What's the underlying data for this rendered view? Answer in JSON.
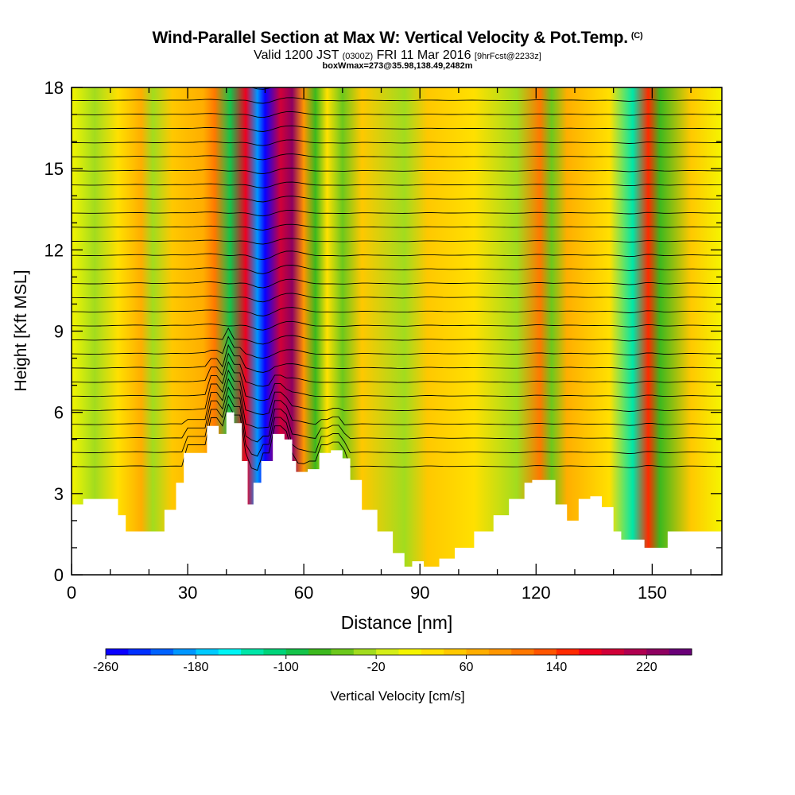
{
  "title": {
    "main": "Wind-Parallel Section at Max W: Vertical Velocity & Pot.Temp.",
    "copyright": "(C)",
    "valid_prefix": "Valid 1200 JST",
    "valid_utc": "(0300Z)",
    "valid_date": "FRI 11 Mar 2016",
    "forecast": "[9hrFcst@2233z]",
    "box_info": "boxWmax=273@35.98,138.49,2482m"
  },
  "chart_data": {
    "type": "heatmap",
    "xlabel": "Distance [nm]",
    "ylabel": "Height [Kft MSL]",
    "xlim": [
      0,
      168
    ],
    "ylim": [
      0,
      18
    ],
    "x_ticks": [
      0,
      30,
      60,
      90,
      120,
      150
    ],
    "y_ticks": [
      0,
      3,
      6,
      9,
      12,
      15,
      18
    ],
    "colorbar": {
      "label": "Vertical Velocity [cm/s]",
      "min": -260,
      "max": 260,
      "step": 20,
      "tick_labels": [
        "-260",
        "-180",
        "-100",
        "-20",
        "60",
        "140",
        "220"
      ],
      "colors": [
        "#0a00ff",
        "#0030ff",
        "#0062ff",
        "#0096ff",
        "#00caff",
        "#00f5f5",
        "#00e6a8",
        "#00d47a",
        "#14c34a",
        "#3cb81e",
        "#6cc81c",
        "#a2dc1e",
        "#d4ee18",
        "#f5f500",
        "#ffe000",
        "#ffc800",
        "#ffae00",
        "#ff9600",
        "#ff7800",
        "#ff5500",
        "#ff2a00",
        "#ee0020",
        "#d00038",
        "#b00050",
        "#8e0060",
        "#6a0078"
      ]
    },
    "velocity_columns": [
      {
        "x": 6,
        "w": -30
      },
      {
        "x": 12,
        "w": 20
      },
      {
        "x": 18,
        "w": 70
      },
      {
        "x": 21,
        "w": -40
      },
      {
        "x": 26,
        "w": 40
      },
      {
        "x": 34,
        "w": 60
      },
      {
        "x": 37,
        "w": 110
      },
      {
        "x": 41,
        "w": -100
      },
      {
        "x": 45,
        "w": 170
      },
      {
        "x": 48,
        "w": -200
      },
      {
        "x": 50,
        "w": -260
      },
      {
        "x": 54,
        "w": 180
      },
      {
        "x": 57,
        "w": 220
      },
      {
        "x": 60,
        "w": 90
      },
      {
        "x": 63,
        "w": -80
      },
      {
        "x": 66,
        "w": 30
      },
      {
        "x": 70,
        "w": -60
      },
      {
        "x": 75,
        "w": 40
      },
      {
        "x": 86,
        "w": -40
      },
      {
        "x": 92,
        "w": 50
      },
      {
        "x": 104,
        "w": 30
      },
      {
        "x": 115,
        "w": -30
      },
      {
        "x": 121,
        "w": 100
      },
      {
        "x": 124,
        "w": -50
      },
      {
        "x": 128,
        "w": 60
      },
      {
        "x": 139,
        "w": 30
      },
      {
        "x": 145,
        "w": -130
      },
      {
        "x": 149,
        "w": 150
      },
      {
        "x": 152,
        "w": -70
      },
      {
        "x": 160,
        "w": 40
      }
    ],
    "terrain_kft": [
      [
        0,
        2.6
      ],
      [
        3,
        2.8
      ],
      [
        8,
        2.8
      ],
      [
        12,
        2.2
      ],
      [
        14,
        1.6
      ],
      [
        21,
        1.6
      ],
      [
        24,
        2.4
      ],
      [
        27,
        3.4
      ],
      [
        29,
        4.5
      ],
      [
        33,
        4.5
      ],
      [
        35,
        5.5
      ],
      [
        38,
        5.2
      ],
      [
        40,
        6.0
      ],
      [
        42,
        5.6
      ],
      [
        44,
        4.2
      ],
      [
        45.5,
        2.6
      ],
      [
        47,
        3.4
      ],
      [
        49,
        4.2
      ],
      [
        52,
        5.2
      ],
      [
        55,
        5.0
      ],
      [
        57,
        4.2
      ],
      [
        58,
        3.8
      ],
      [
        61,
        3.9
      ],
      [
        64,
        4.5
      ],
      [
        67,
        4.6
      ],
      [
        70,
        4.3
      ],
      [
        72,
        3.5
      ],
      [
        75,
        2.4
      ],
      [
        79,
        1.6
      ],
      [
        83,
        0.8
      ],
      [
        86,
        0.3
      ],
      [
        88,
        0.5
      ],
      [
        91,
        0.3
      ],
      [
        95,
        0.6
      ],
      [
        99,
        1.0
      ],
      [
        104,
        1.6
      ],
      [
        109,
        2.2
      ],
      [
        113,
        2.8
      ],
      [
        117,
        3.4
      ],
      [
        119,
        3.5
      ],
      [
        122,
        3.5
      ],
      [
        125,
        2.6
      ],
      [
        128,
        2.0
      ],
      [
        131,
        2.8
      ],
      [
        134,
        2.9
      ],
      [
        137,
        2.5
      ],
      [
        140,
        1.6
      ],
      [
        142,
        1.3
      ],
      [
        145,
        1.3
      ],
      [
        148,
        1.0
      ],
      [
        151,
        1.0
      ],
      [
        154,
        1.6
      ],
      [
        168,
        1.6
      ]
    ]
  }
}
